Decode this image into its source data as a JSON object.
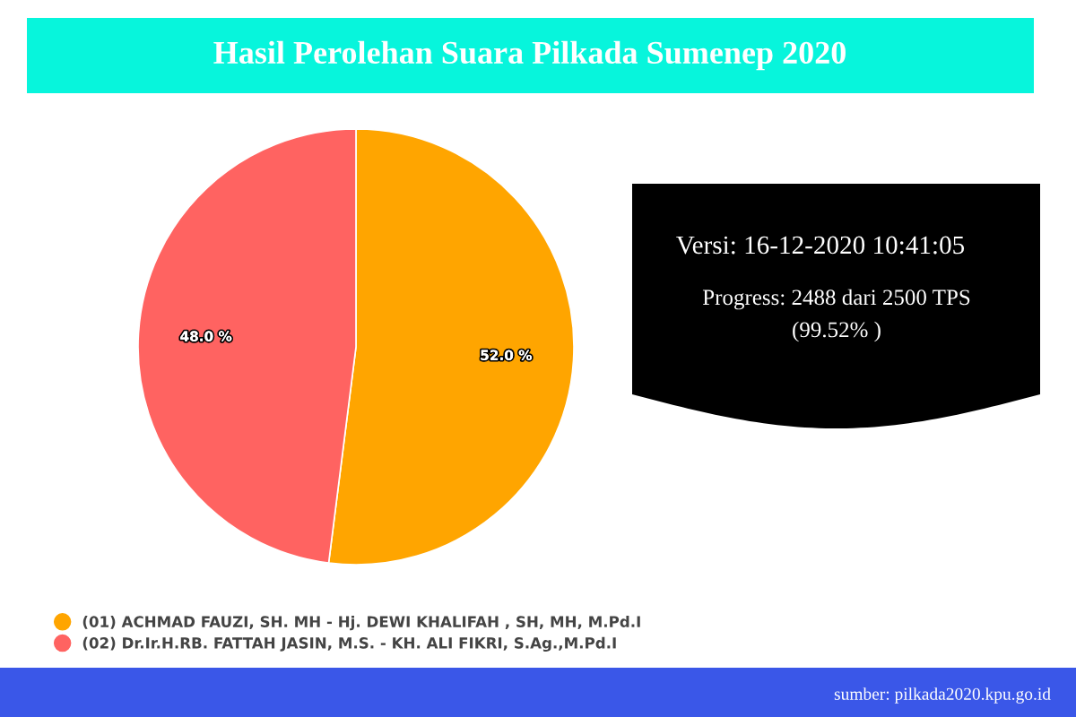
{
  "chart_data": {
    "type": "pie",
    "title": "Hasil Perolehan Suara Pilkada Sumenep 2020",
    "categories": [
      "(01) ACHMAD FAUZI, SH. MH - Hj. DEWI KHALIFAH , SH, MH, M.Pd.I",
      "(02) Dr.Ir.H.RB. FATTAH JASIN, M.S. - KH. ALI FIKRI, S.Ag.,M.Pd.I"
    ],
    "values": [
      52.0,
      48.0
    ],
    "colors": [
      "#ffa500",
      "#ff6361"
    ],
    "value_labels": [
      "52.0 %",
      "48.0 %"
    ],
    "legend": "bottom left",
    "annotations": [
      "Versi: 16-12-2020 10:41:05",
      "Progress: 2488 dari 2500 TPS",
      "(99.52% )",
      "sumber: pilkada2020.kpu.go.id"
    ]
  }
}
